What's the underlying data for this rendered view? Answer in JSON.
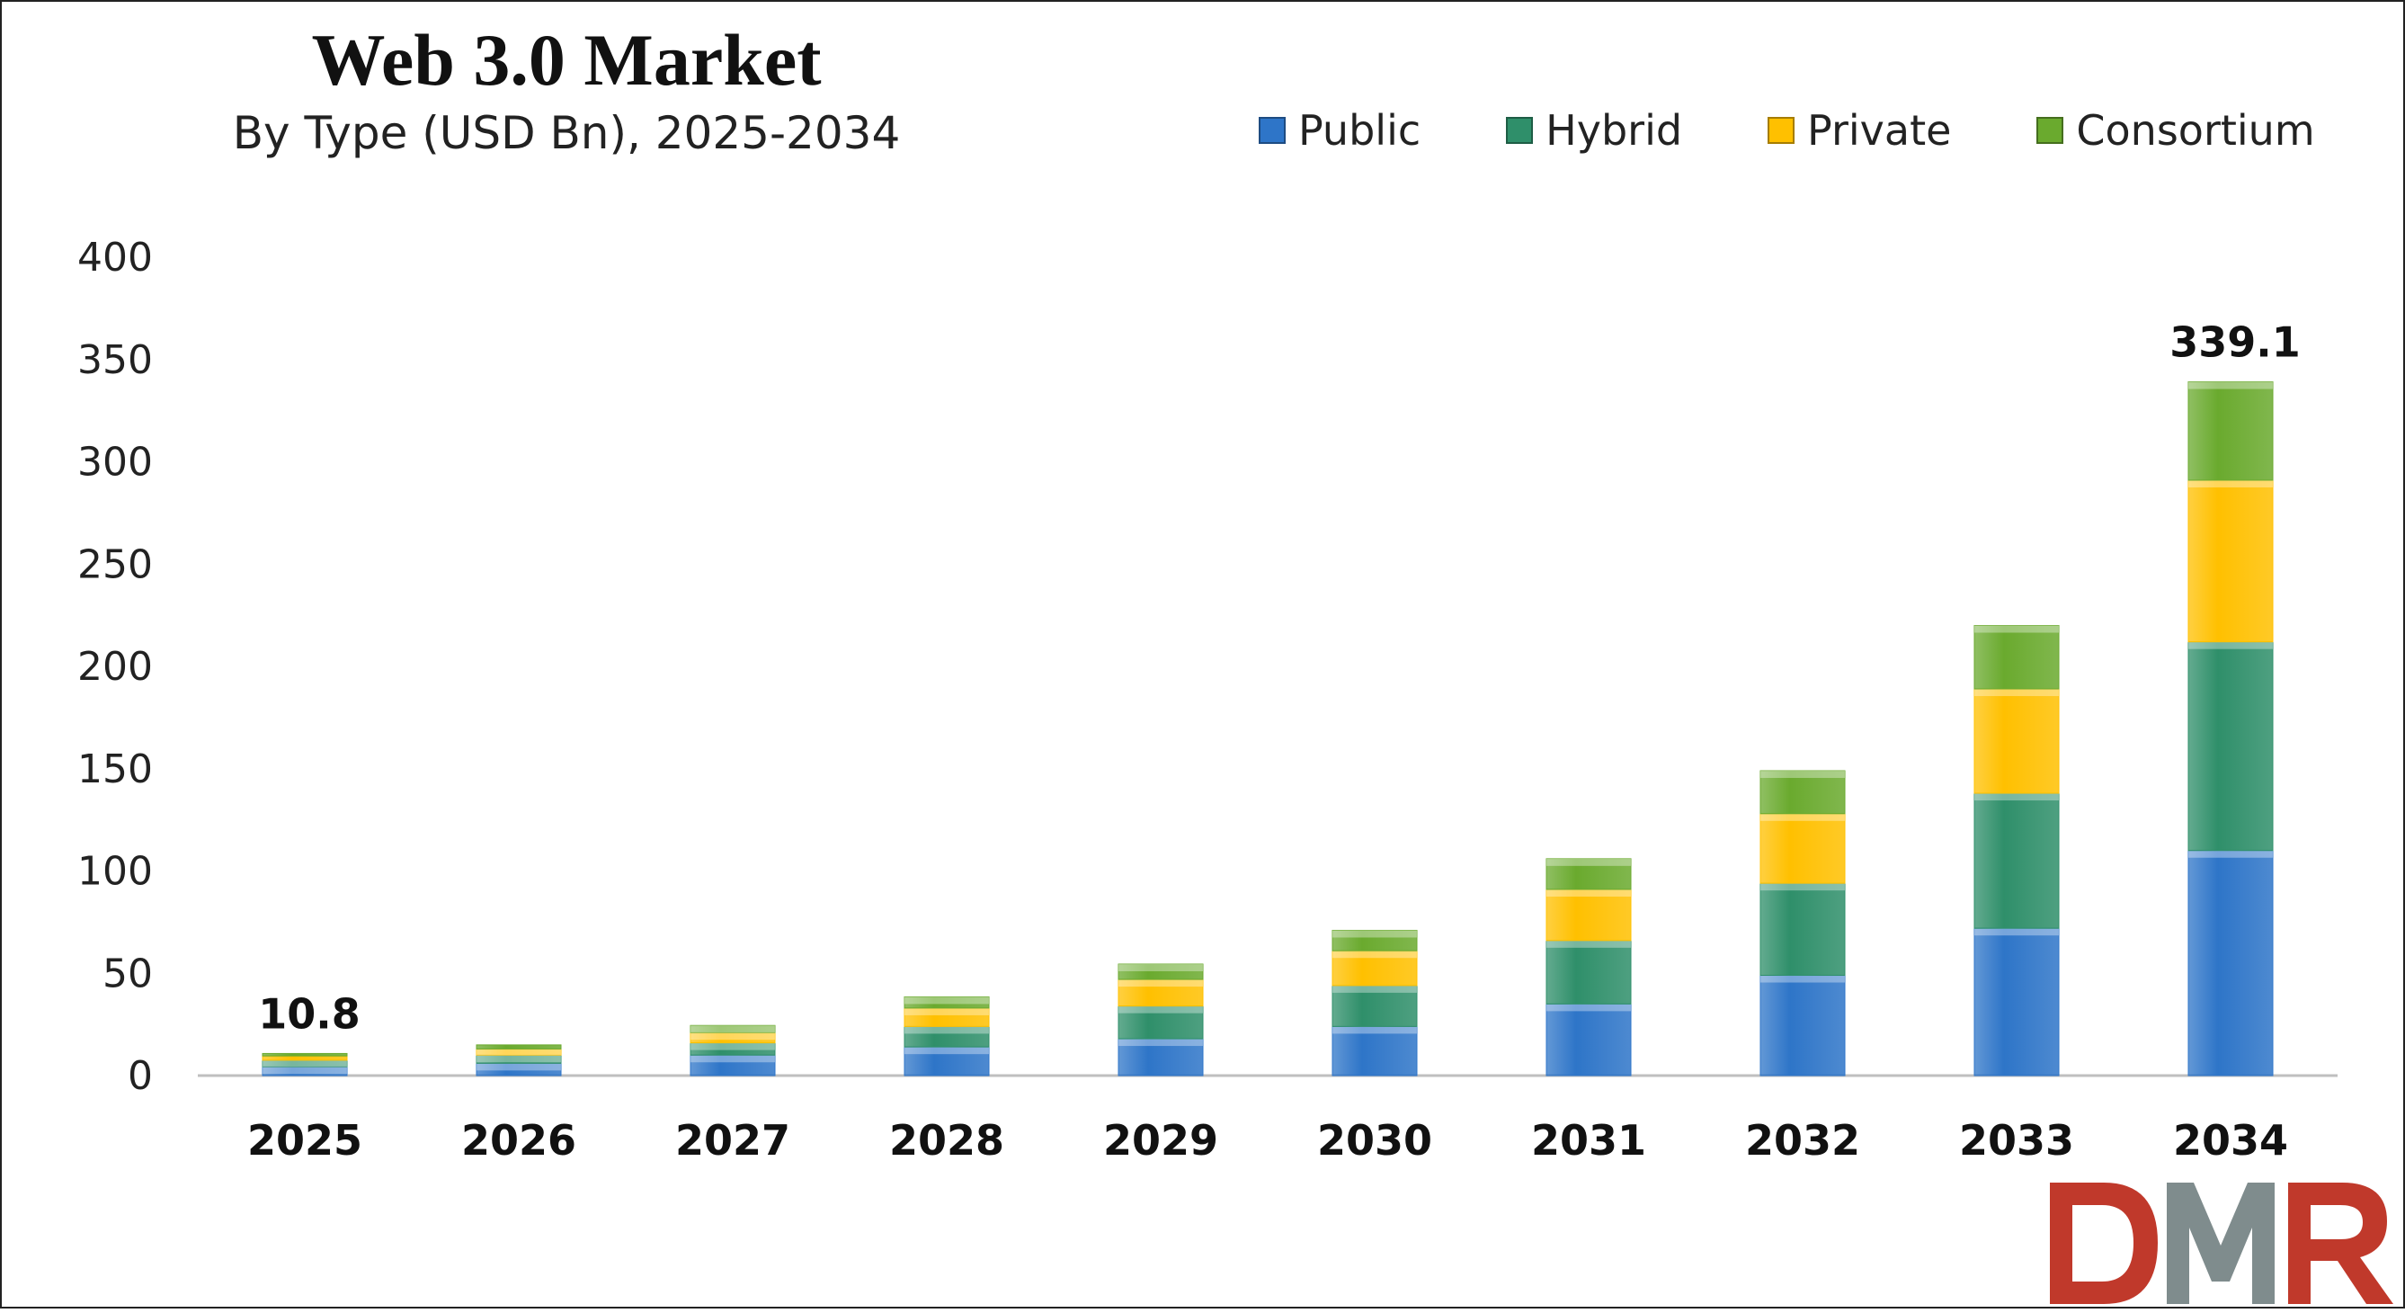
{
  "chart_data": {
    "type": "bar",
    "stacked": true,
    "title": "Web 3.0 Market",
    "subtitle": "By Type (USD Bn), 2025-2034",
    "xlabel": "",
    "ylabel": "",
    "ylim": [
      0,
      400
    ],
    "yticks": [
      0,
      50,
      100,
      150,
      200,
      250,
      300,
      350,
      400
    ],
    "grid": false,
    "legend_position": "top-right",
    "categories": [
      "2025",
      "2026",
      "2027",
      "2028",
      "2029",
      "2030",
      "2031",
      "2032",
      "2033",
      "2034"
    ],
    "series": [
      {
        "name": "Public",
        "color": "#2e75c8",
        "values": [
          4.3,
          6.0,
          10.0,
          14.0,
          18.0,
          24.0,
          35.0,
          49.0,
          72.0,
          110.0
        ]
      },
      {
        "name": "Hybrid",
        "color": "#2f8f6a",
        "values": [
          3.2,
          4.0,
          6.0,
          10.0,
          16.0,
          20.0,
          31.0,
          45.0,
          66.0,
          102.0
        ]
      },
      {
        "name": "Private",
        "color": "#ffc000",
        "values": [
          2.1,
          3.0,
          5.0,
          9.0,
          13.0,
          17.0,
          25.0,
          34.0,
          51.0,
          79.0
        ]
      },
      {
        "name": "Consortium",
        "color": "#6aaa2e",
        "values": [
          1.2,
          2.0,
          3.5,
          5.5,
          7.5,
          10.0,
          15.0,
          21.0,
          31.0,
          48.1
        ]
      }
    ],
    "totals": [
      10.8,
      15.0,
      24.5,
      38.5,
      54.5,
      71.0,
      106.0,
      149.0,
      220.0,
      339.1
    ],
    "data_labels": [
      {
        "category": "2025",
        "text": "10.8"
      },
      {
        "category": "2034",
        "text": "339.1"
      }
    ]
  },
  "logo": {
    "text": "DMR",
    "colors": [
      "#c0392b",
      "#7f8c8d"
    ]
  }
}
